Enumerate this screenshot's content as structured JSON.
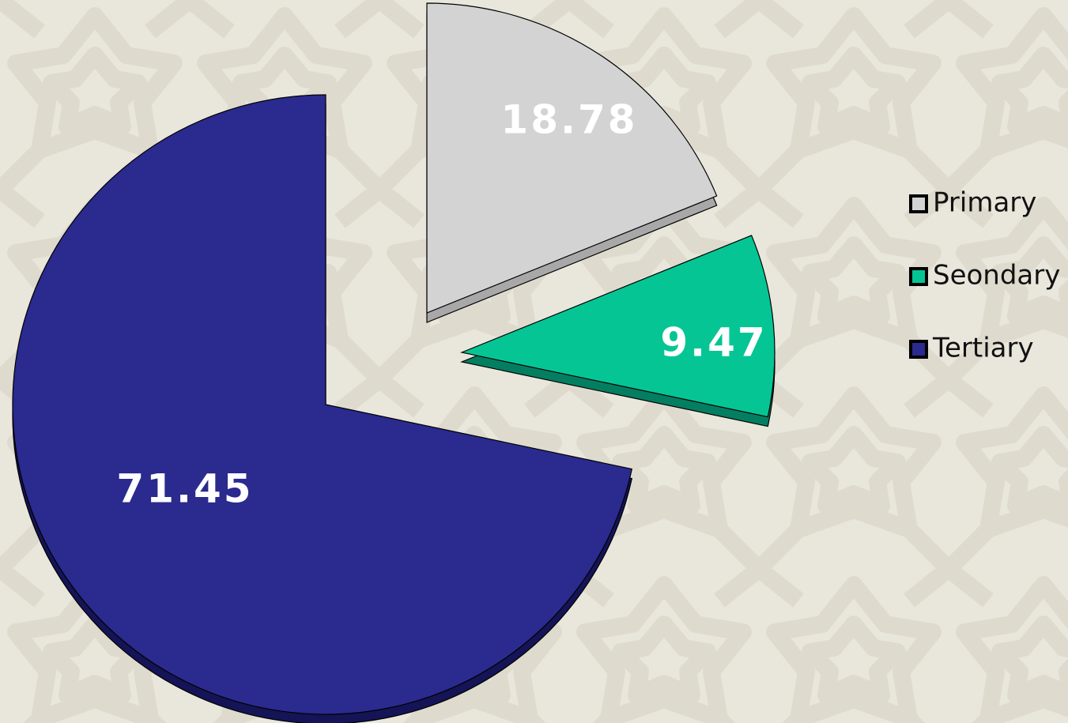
{
  "chart_data": {
    "type": "pie",
    "title": "",
    "slices": [
      {
        "name": "Primary",
        "value": 18.78,
        "label": "18.78",
        "color": "#d3d3d3",
        "side_color": "#a8a8a8"
      },
      {
        "name": "Seondary",
        "value": 9.47,
        "label": "9.47",
        "color": "#06c595",
        "side_color": "#047e60"
      },
      {
        "name": "Tertiary",
        "value": 71.45,
        "label": "71.45",
        "color": "#2a2a8f",
        "side_color": "#141457"
      }
    ],
    "legend_position": "right",
    "exploded": true,
    "three_d": true
  },
  "background": {
    "base_color": "#e9e7dc",
    "pattern_color": "#d5d1c2"
  }
}
